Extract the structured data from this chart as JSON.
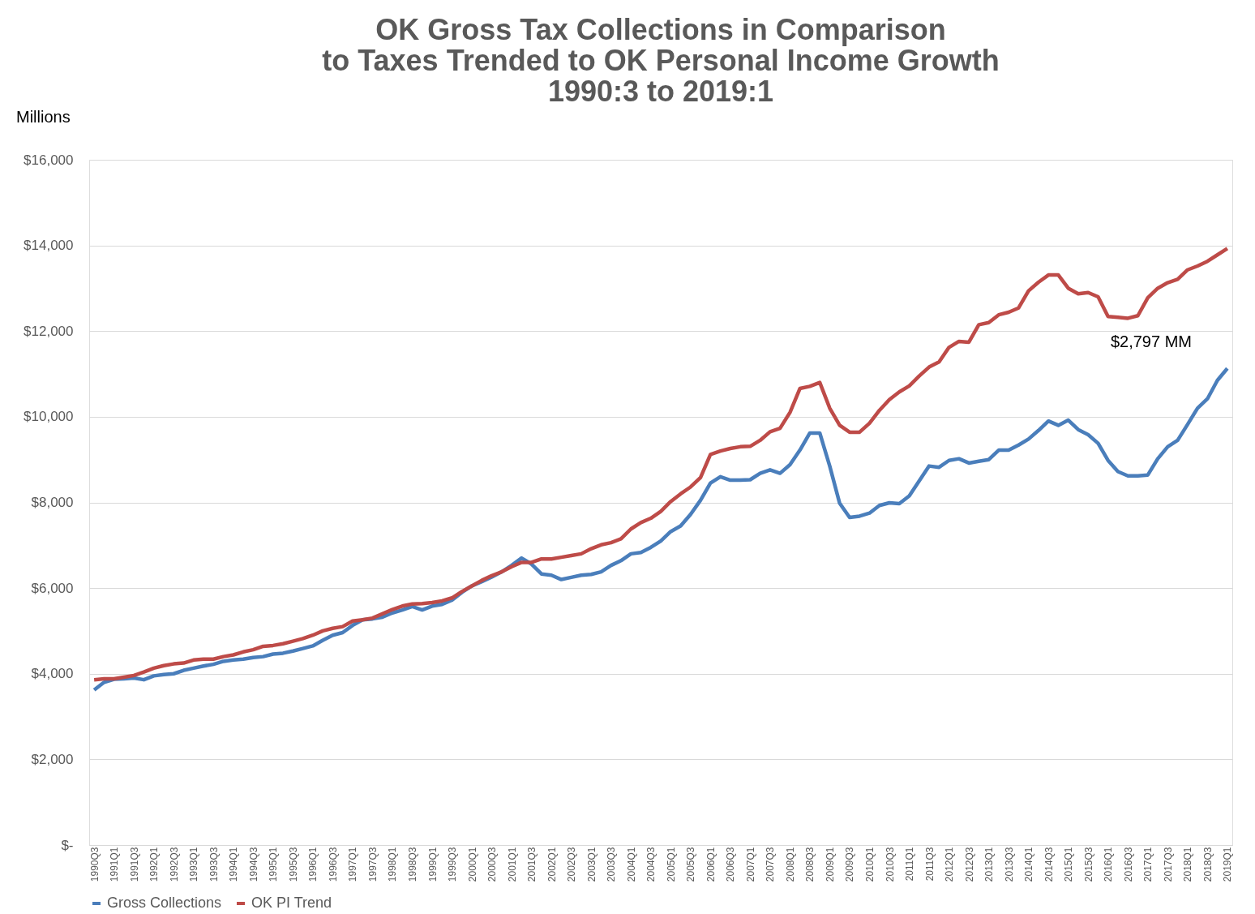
{
  "chart_data": {
    "type": "line",
    "title": [
      "OK Gross Tax Collections in Comparison",
      "to Taxes Trended to OK Personal Income Growth",
      "1990:3 to 2019:1"
    ],
    "ylabel": "Millions",
    "categories": [
      "1990Q3",
      null,
      "1991Q1",
      null,
      "1991Q3",
      null,
      "1992Q1",
      null,
      "1992Q3",
      null,
      "1993Q1",
      null,
      "1993Q3",
      null,
      "1994Q1",
      null,
      "1994Q3",
      null,
      "1995Q1",
      null,
      "1995Q3",
      null,
      "1996Q1",
      null,
      "1996Q3",
      null,
      "1997Q1",
      null,
      "1997Q3",
      null,
      "1998Q1",
      null,
      "1998Q3",
      null,
      "1999Q1",
      null,
      "1999Q3",
      null,
      "2000Q1",
      null,
      "2000Q3",
      null,
      "2001Q1",
      null,
      "2001Q3",
      null,
      "2002Q1",
      null,
      "2002Q3",
      null,
      "2003Q1",
      null,
      "2003Q3",
      null,
      "2004Q1",
      null,
      "2004Q3",
      null,
      "2005Q1",
      null,
      "2005Q3",
      null,
      "2006Q1",
      null,
      "2006Q3",
      null,
      "2007Q1",
      null,
      "2007Q3",
      null,
      "2008Q1",
      null,
      "2008Q3",
      null,
      "2009Q1",
      null,
      "2009Q3",
      null,
      "2010Q1",
      null,
      "2010Q3",
      null,
      "2011Q1",
      null,
      "2011Q3",
      null,
      "2012Q1",
      null,
      "2012Q3",
      null,
      "2013Q1",
      null,
      "2013Q3",
      null,
      "2014Q1",
      null,
      "2014Q3",
      null,
      "2015Q1",
      null,
      "2015Q3",
      null,
      "2016Q1",
      null,
      "2016Q3",
      null,
      "2017Q1",
      null,
      "2017Q3",
      null,
      "2018Q1",
      null,
      "2018Q3",
      null,
      "2019Q1"
    ],
    "series": [
      {
        "name": "Gross Collections",
        "color": "#4a7ebb",
        "values": [
          3620,
          3800,
          3870,
          3880,
          3900,
          3860,
          3950,
          3980,
          4000,
          4080,
          4130,
          4180,
          4220,
          4290,
          4320,
          4340,
          4380,
          4400,
          4460,
          4480,
          4530,
          4590,
          4650,
          4780,
          4900,
          4960,
          5130,
          5260,
          5280,
          5320,
          5420,
          5490,
          5570,
          5490,
          5580,
          5620,
          5720,
          5900,
          6050,
          6150,
          6260,
          6380,
          6530,
          6700,
          6560,
          6330,
          6300,
          6200,
          6250,
          6300,
          6320,
          6380,
          6530,
          6640,
          6800,
          6830,
          6950,
          7100,
          7320,
          7450,
          7720,
          8050,
          8450,
          8600,
          8520,
          8520,
          8530,
          8680,
          8760,
          8680,
          8880,
          9220,
          9620,
          9620,
          8850,
          7980,
          7650,
          7680,
          7750,
          7930,
          7990,
          7970,
          8150,
          8500,
          8850,
          8820,
          8980,
          9020,
          8920,
          8960,
          9000,
          9220,
          9220,
          9340,
          9480,
          9680,
          9900,
          9800,
          9920,
          9700,
          9580,
          9380,
          8980,
          8720,
          8620,
          8620,
          8640,
          9020,
          9300,
          9450,
          9820,
          10200,
          10420,
          10850,
          11130
        ]
      },
      {
        "name": "OK PI Trend",
        "color": "#be4b48",
        "values": [
          3860,
          3880,
          3880,
          3920,
          3960,
          4040,
          4130,
          4190,
          4230,
          4250,
          4320,
          4340,
          4340,
          4400,
          4440,
          4510,
          4560,
          4640,
          4660,
          4700,
          4760,
          4820,
          4900,
          5000,
          5060,
          5100,
          5230,
          5260,
          5300,
          5400,
          5500,
          5580,
          5630,
          5640,
          5660,
          5700,
          5770,
          5920,
          6050,
          6180,
          6290,
          6380,
          6500,
          6600,
          6600,
          6680,
          6680,
          6720,
          6760,
          6800,
          6920,
          7010,
          7060,
          7150,
          7380,
          7530,
          7630,
          7790,
          8020,
          8200,
          8360,
          8580,
          9120,
          9200,
          9260,
          9300,
          9310,
          9450,
          9650,
          9730,
          10100,
          10660,
          10710,
          10800,
          10200,
          9800,
          9640,
          9640,
          9850,
          10150,
          10400,
          10580,
          10720,
          10950,
          11160,
          11280,
          11620,
          11760,
          11740,
          12150,
          12200,
          12380,
          12440,
          12540,
          12940,
          13140,
          13310,
          13310,
          13000,
          12870,
          12900,
          12800,
          12340,
          12320,
          12300,
          12360,
          12780,
          13000,
          13130,
          13210,
          13430,
          13520,
          13630,
          13780,
          13930
        ]
      }
    ],
    "ylim": [
      0,
      16000
    ],
    "yticks": [
      {
        "value": 0,
        "label": "$-"
      },
      {
        "value": 2000,
        "label": "$2,000"
      },
      {
        "value": 4000,
        "label": "$4,000"
      },
      {
        "value": 6000,
        "label": "$6,000"
      },
      {
        "value": 8000,
        "label": "$8,000"
      },
      {
        "value": 10000,
        "label": "$10,000"
      },
      {
        "value": 12000,
        "label": "$12,000"
      },
      {
        "value": 14000,
        "label": "$14,000"
      },
      {
        "value": 16000,
        "label": "$16,000"
      }
    ],
    "grid": "y",
    "legend": "bottom",
    "line_style": "solid",
    "marker": "none",
    "annotations": [
      "$2,797 MM"
    ]
  }
}
